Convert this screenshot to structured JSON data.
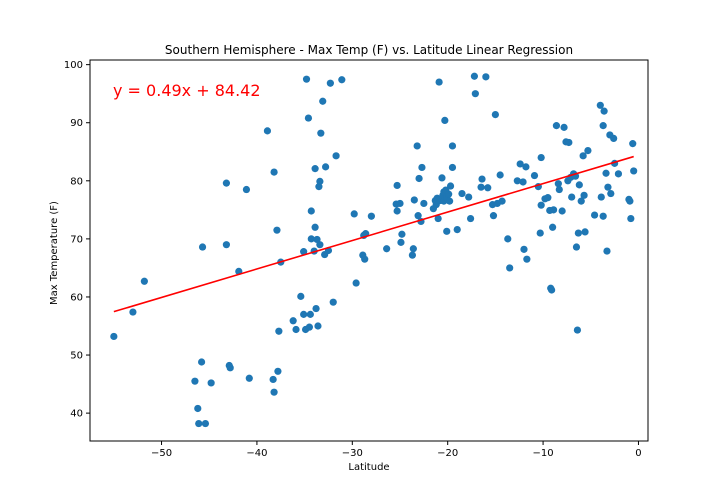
{
  "chart_data": {
    "type": "scatter",
    "title": "Southern Hemisphere - Max Temp (F) vs. Latitude Linear Regression",
    "xlabel": "Latitude",
    "ylabel": "Max Temperature (F)",
    "xlim": [
      -57.5,
      1.0
    ],
    "ylim": [
      35.2,
      100.8
    ],
    "xticks": [
      -50,
      -40,
      -30,
      -20,
      -10,
      0
    ],
    "xtick_labels": [
      "−50",
      "−40",
      "−30",
      "−20",
      "−10",
      "0"
    ],
    "yticks": [
      40,
      50,
      60,
      70,
      80,
      90,
      100
    ],
    "ytick_labels": [
      "40",
      "50",
      "60",
      "70",
      "80",
      "90",
      "100"
    ],
    "grid": false,
    "point_color": "#1f77b4",
    "line_color": "#ff0000",
    "regression": {
      "slope": 0.49,
      "intercept": 84.42,
      "x_range": [
        -55.0,
        -0.5
      ],
      "equation_label": "y = 0.49x + 84.42",
      "label_color": "#ff0000"
    },
    "points": [
      [
        -55.0,
        53.2
      ],
      [
        -53.0,
        57.4
      ],
      [
        -51.8,
        62.7
      ],
      [
        -46.5,
        45.5
      ],
      [
        -46.2,
        40.8
      ],
      [
        -46.1,
        38.2
      ],
      [
        -45.8,
        48.8
      ],
      [
        -45.7,
        68.6
      ],
      [
        -45.4,
        38.2
      ],
      [
        -44.8,
        45.2
      ],
      [
        -43.2,
        79.6
      ],
      [
        -43.2,
        69.0
      ],
      [
        -42.9,
        48.2
      ],
      [
        -42.8,
        47.8
      ],
      [
        -41.9,
        64.4
      ],
      [
        -41.1,
        78.5
      ],
      [
        -40.8,
        46.0
      ],
      [
        -38.9,
        88.6
      ],
      [
        -38.3,
        45.8
      ],
      [
        -38.2,
        43.6
      ],
      [
        -38.2,
        81.5
      ],
      [
        -37.9,
        71.5
      ],
      [
        -37.8,
        47.2
      ],
      [
        -37.7,
        54.1
      ],
      [
        -37.5,
        66.0
      ],
      [
        -36.2,
        55.9
      ],
      [
        -35.9,
        54.4
      ],
      [
        -35.4,
        60.1
      ],
      [
        -35.1,
        57.0
      ],
      [
        -35.1,
        67.8
      ],
      [
        -34.9,
        54.4
      ],
      [
        -34.8,
        97.5
      ],
      [
        -34.6,
        90.8
      ],
      [
        -34.5,
        54.8
      ],
      [
        -34.4,
        57.0
      ],
      [
        -34.3,
        70.0
      ],
      [
        -34.3,
        74.8
      ],
      [
        -34.0,
        67.9
      ],
      [
        -33.9,
        72.0
      ],
      [
        -33.9,
        82.1
      ],
      [
        -33.8,
        58.0
      ],
      [
        -33.7,
        69.9
      ],
      [
        -33.6,
        55.0
      ],
      [
        -33.5,
        79.0
      ],
      [
        -33.4,
        69.0
      ],
      [
        -33.4,
        79.9
      ],
      [
        -33.3,
        88.2
      ],
      [
        -33.1,
        93.7
      ],
      [
        -32.9,
        67.3
      ],
      [
        -32.8,
        82.4
      ],
      [
        -32.5,
        68.0
      ],
      [
        -32.3,
        96.8
      ],
      [
        -32.0,
        59.1
      ],
      [
        -31.7,
        84.3
      ],
      [
        -31.1,
        97.4
      ],
      [
        -29.8,
        74.3
      ],
      [
        -29.6,
        62.4
      ],
      [
        -28.9,
        67.2
      ],
      [
        -28.8,
        70.6
      ],
      [
        -28.7,
        66.5
      ],
      [
        -28.6,
        70.9
      ],
      [
        -28.0,
        73.9
      ],
      [
        -26.4,
        68.3
      ],
      [
        -25.4,
        76.0
      ],
      [
        -25.3,
        79.2
      ],
      [
        -25.3,
        74.8
      ],
      [
        -25.0,
        76.1
      ],
      [
        -24.9,
        69.4
      ],
      [
        -24.8,
        70.8
      ],
      [
        -23.7,
        67.2
      ],
      [
        -23.6,
        68.3
      ],
      [
        -23.5,
        76.7
      ],
      [
        -23.2,
        86.0
      ],
      [
        -23.1,
        74.0
      ],
      [
        -23.0,
        80.4
      ],
      [
        -22.8,
        73.0
      ],
      [
        -22.7,
        82.3
      ],
      [
        -22.5,
        76.1
      ],
      [
        -21.5,
        75.2
      ],
      [
        -21.3,
        76.6
      ],
      [
        -21.2,
        75.9
      ],
      [
        -21.1,
        77.0
      ],
      [
        -21.0,
        73.5
      ],
      [
        -20.9,
        97.0
      ],
      [
        -20.8,
        76.6
      ],
      [
        -20.6,
        80.5
      ],
      [
        -20.5,
        77.5
      ],
      [
        -20.4,
        76.5
      ],
      [
        -20.4,
        78.1
      ],
      [
        -20.3,
        90.4
      ],
      [
        -20.2,
        78.4
      ],
      [
        -20.1,
        77.1
      ],
      [
        -20.1,
        71.3
      ],
      [
        -19.9,
        77.7
      ],
      [
        -19.8,
        76.5
      ],
      [
        -19.7,
        79.1
      ],
      [
        -19.5,
        86.0
      ],
      [
        -19.5,
        82.3
      ],
      [
        -19.0,
        71.6
      ],
      [
        -18.5,
        77.8
      ],
      [
        -17.8,
        77.2
      ],
      [
        -17.6,
        73.5
      ],
      [
        -17.2,
        98.0
      ],
      [
        -17.1,
        95.0
      ],
      [
        -16.5,
        78.9
      ],
      [
        -16.4,
        80.3
      ],
      [
        -16.0,
        97.9
      ],
      [
        -15.8,
        78.8
      ],
      [
        -15.3,
        75.9
      ],
      [
        -15.2,
        74.0
      ],
      [
        -15.0,
        91.4
      ],
      [
        -14.8,
        76.1
      ],
      [
        -14.5,
        81.0
      ],
      [
        -14.3,
        76.5
      ],
      [
        -13.7,
        70.0
      ],
      [
        -13.5,
        65.0
      ],
      [
        -12.7,
        80.0
      ],
      [
        -12.4,
        82.9
      ],
      [
        -12.1,
        79.8
      ],
      [
        -12.0,
        68.2
      ],
      [
        -11.8,
        82.4
      ],
      [
        -11.7,
        66.5
      ],
      [
        -10.9,
        80.9
      ],
      [
        -10.5,
        79.0
      ],
      [
        -10.3,
        71.0
      ],
      [
        -10.2,
        75.8
      ],
      [
        -10.2,
        84.0
      ],
      [
        -9.8,
        76.9
      ],
      [
        -9.5,
        77.1
      ],
      [
        -9.3,
        74.9
      ],
      [
        -9.2,
        61.5
      ],
      [
        -9.1,
        61.2
      ],
      [
        -9.0,
        72.0
      ],
      [
        -8.9,
        75.0
      ],
      [
        -8.6,
        89.5
      ],
      [
        -8.4,
        79.5
      ],
      [
        -8.3,
        78.5
      ],
      [
        -8.0,
        74.8
      ],
      [
        -7.8,
        89.2
      ],
      [
        -7.6,
        86.7
      ],
      [
        -7.4,
        80.0
      ],
      [
        -7.3,
        86.6
      ],
      [
        -7.1,
        80.6
      ],
      [
        -7.0,
        77.2
      ],
      [
        -6.8,
        81.2
      ],
      [
        -6.6,
        80.8
      ],
      [
        -6.5,
        68.6
      ],
      [
        -6.4,
        54.3
      ],
      [
        -6.3,
        71.0
      ],
      [
        -6.2,
        79.3
      ],
      [
        -6.0,
        76.5
      ],
      [
        -5.8,
        84.3
      ],
      [
        -5.7,
        77.5
      ],
      [
        -5.6,
        71.2
      ],
      [
        -5.3,
        85.2
      ],
      [
        -4.6,
        74.1
      ],
      [
        -4.0,
        93.0
      ],
      [
        -3.9,
        77.2
      ],
      [
        -3.7,
        89.5
      ],
      [
        -3.7,
        73.9
      ],
      [
        -3.6,
        92.0
      ],
      [
        -3.4,
        81.3
      ],
      [
        -3.3,
        67.9
      ],
      [
        -3.2,
        78.9
      ],
      [
        -3.0,
        87.9
      ],
      [
        -2.9,
        77.8
      ],
      [
        -2.6,
        87.3
      ],
      [
        -2.5,
        83.0
      ],
      [
        -2.1,
        81.2
      ],
      [
        -1.0,
        76.8
      ],
      [
        -0.9,
        76.5
      ],
      [
        -0.8,
        73.5
      ],
      [
        -0.6,
        86.4
      ],
      [
        -0.5,
        81.7
      ]
    ]
  }
}
